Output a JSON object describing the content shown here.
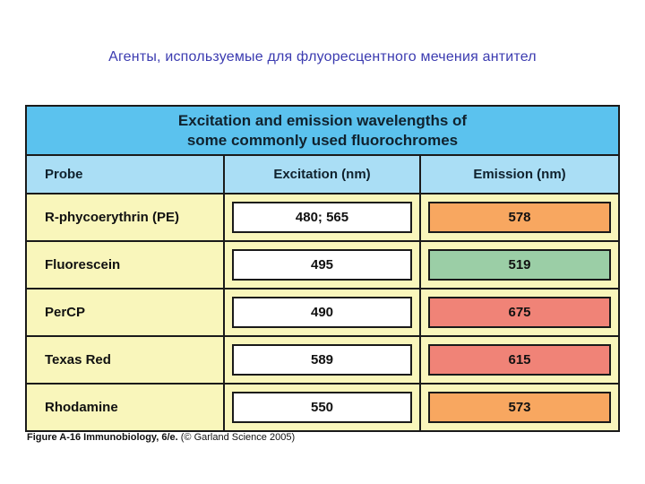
{
  "page": {
    "slide_title": "Агенты, используемые для флуоресцентного мечения антител",
    "caption": {
      "figure_label": "Figure A-16",
      "source": "Immunobiology, 6/e.",
      "copyright": "(© Garland Science 2005)"
    }
  },
  "table": {
    "title_line1": "Excitation and emission wavelengths of",
    "title_line2": "some commonly used fluorochromes",
    "columns": [
      "Probe",
      "Excitation (nm)",
      "Emission (nm)"
    ],
    "rows": [
      {
        "probe": "R-phycoerythrin (PE)",
        "excitation": "480; 565",
        "emission": "578",
        "emission_color": "#f8a760"
      },
      {
        "probe": "Fluorescein",
        "excitation": "495",
        "emission": "519",
        "emission_color": "#9bcea6"
      },
      {
        "probe": "PerCP",
        "excitation": "490",
        "emission": "675",
        "emission_color": "#f08377"
      },
      {
        "probe": "Texas Red",
        "excitation": "589",
        "emission": "615",
        "emission_color": "#f08377"
      },
      {
        "probe": "Rhodamine",
        "excitation": "550",
        "emission": "573",
        "emission_color": "#f8a760"
      }
    ],
    "colors": {
      "title_band": "#5bc2ee",
      "header_row": "#aadef5",
      "body_background": "#f9f6bb",
      "border": "#1a1a1a",
      "slide_title_text": "#3b3bb0"
    }
  }
}
